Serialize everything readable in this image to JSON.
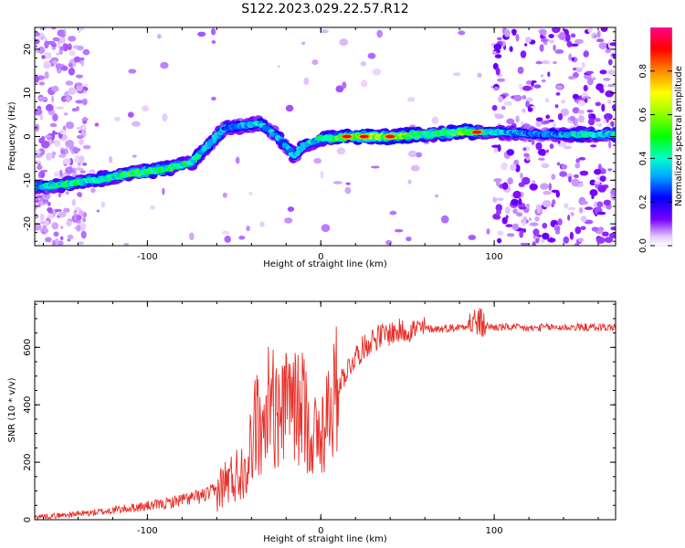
{
  "figure": {
    "title": "S122.2023.029.22.57.R12"
  },
  "chart_data": [
    {
      "type": "heatmap",
      "xlabel": "Height of straight line (km)",
      "ylabel": "Frequency (Hz)",
      "xlim": [
        -165,
        170
      ],
      "ylim": [
        -25,
        25
      ],
      "xticks": [
        -100,
        0,
        100
      ],
      "yticks": [
        -20,
        -10,
        0,
        10,
        20
      ],
      "colorbar": {
        "label": "Normalized spectral amplitude",
        "range": [
          0,
          1
        ],
        "ticks": [
          "0.0",
          "0.2",
          "0.4",
          "0.6",
          "0.8"
        ],
        "tick_values": [
          0,
          0.2,
          0.4,
          0.6,
          0.8
        ]
      },
      "ridge": {
        "description_points_height_freq_amp": [
          [
            -165,
            -11.5,
            0.35
          ],
          [
            -150,
            -11.0,
            0.4
          ],
          [
            -130,
            -10.0,
            0.4
          ],
          [
            -110,
            -8.5,
            0.45
          ],
          [
            -90,
            -7.5,
            0.45
          ],
          [
            -75,
            -6.0,
            0.4
          ],
          [
            -65,
            -2.0,
            0.35
          ],
          [
            -55,
            2.0,
            0.3
          ],
          [
            -45,
            2.5,
            0.3
          ],
          [
            -35,
            3.0,
            0.35
          ],
          [
            -25,
            0.0,
            0.3
          ],
          [
            -15,
            -4.5,
            0.35
          ],
          [
            -10,
            -2.0,
            0.3
          ],
          [
            0,
            -0.5,
            0.4
          ],
          [
            20,
            0.0,
            0.55
          ],
          [
            40,
            0.0,
            0.55
          ],
          [
            60,
            0.5,
            0.45
          ],
          [
            80,
            1.0,
            0.5
          ],
          [
            100,
            1.0,
            0.35
          ],
          [
            130,
            0.5,
            0.25
          ],
          [
            150,
            0.5,
            0.4
          ],
          [
            170,
            0.5,
            0.35
          ]
        ],
        "peaks_height_freq": [
          [
            15,
            0
          ],
          [
            25,
            0
          ],
          [
            40,
            0
          ],
          [
            90,
            1
          ]
        ]
      }
    },
    {
      "type": "line",
      "xlabel": "Height of straight line (km)",
      "ylabel": "SNR (10 * v/v)",
      "xlim": [
        -165,
        170
      ],
      "ylim": [
        0,
        760
      ],
      "xticks": [
        -100,
        0,
        100
      ],
      "yticks": [
        0,
        200,
        400,
        600
      ],
      "line_color": "#e8302a",
      "series": [
        {
          "x": [
            -165,
            -150,
            -130,
            -110,
            -90,
            -80,
            -70,
            -60,
            -55,
            -50,
            -45,
            -40,
            -38,
            -35,
            -33,
            -30,
            -28,
            -25,
            -22,
            -20,
            -18,
            -15,
            -12,
            -10,
            -8,
            -5,
            -2,
            0,
            3,
            5,
            8,
            10,
            15,
            20,
            25,
            30,
            40,
            50,
            60,
            70,
            80,
            85,
            90,
            95,
            100,
            110,
            120,
            130,
            140,
            150,
            160,
            170
          ],
          "y": [
            10,
            15,
            25,
            40,
            55,
            70,
            80,
            100,
            130,
            150,
            180,
            250,
            350,
            300,
            250,
            450,
            400,
            350,
            420,
            380,
            450,
            400,
            370,
            400,
            350,
            300,
            280,
            300,
            360,
            400,
            430,
            470,
            520,
            570,
            600,
            630,
            650,
            660,
            665,
            665,
            670,
            680,
            690,
            675,
            670,
            670,
            665,
            670,
            670,
            670,
            670,
            670
          ]
        }
      ]
    }
  ]
}
